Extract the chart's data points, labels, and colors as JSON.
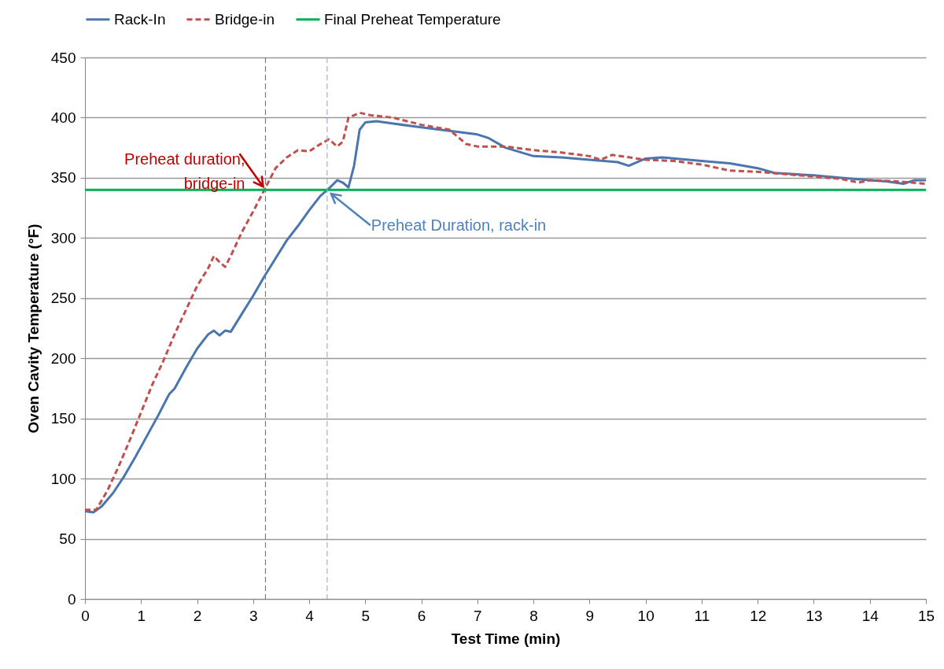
{
  "chart_data": {
    "type": "line",
    "xlabel": "Test Time (min)",
    "ylabel": "Oven Cavity Temperature (°F)",
    "xlim": [
      0,
      15
    ],
    "xticks": [
      0,
      1,
      2,
      3,
      4,
      5,
      6,
      7,
      8,
      9,
      10,
      11,
      12,
      13,
      14,
      15
    ],
    "ylim": [
      0,
      450
    ],
    "yticks": [
      0,
      50,
      100,
      150,
      200,
      250,
      300,
      350,
      400,
      450
    ],
    "grid": "y",
    "legend": "top",
    "marker": "none",
    "series": [
      {
        "name": "Rack-In",
        "color": "#4a76b0",
        "line_style": "solid",
        "x": [
          0,
          0.15,
          0.3,
          0.5,
          0.7,
          0.9,
          1.1,
          1.3,
          1.5,
          1.6,
          1.8,
          2.0,
          2.2,
          2.3,
          2.4,
          2.5,
          2.6,
          2.8,
          3.0,
          3.2,
          3.4,
          3.6,
          3.8,
          4.0,
          4.2,
          4.35,
          4.5,
          4.6,
          4.7,
          4.8,
          4.9,
          5.0,
          5.2,
          5.5,
          6,
          6.5,
          7,
          7.2,
          7.5,
          8,
          8.5,
          9,
          9.5,
          9.7,
          10,
          10.3,
          11,
          11.5,
          12,
          12.3,
          13,
          13.5,
          14,
          14.3,
          14.6,
          14.8,
          15
        ],
        "values": [
          73,
          72,
          77,
          88,
          102,
          118,
          135,
          152,
          170,
          175,
          192,
          208,
          220,
          223,
          219,
          223,
          222,
          237,
          252,
          268,
          283,
          298,
          310,
          323,
          335,
          341,
          348,
          346,
          342,
          360,
          390,
          396,
          397,
          395,
          392,
          389,
          386,
          383,
          375,
          368,
          367,
          365,
          363,
          360,
          366,
          367,
          364,
          362,
          358,
          354,
          352,
          350,
          348,
          347,
          345,
          348,
          348
        ]
      },
      {
        "name": "Bridge-in",
        "color": "#c0504d",
        "line_style": "dashed",
        "x": [
          0,
          0.2,
          0.4,
          0.6,
          0.8,
          1.0,
          1.2,
          1.4,
          1.6,
          1.8,
          2.0,
          2.2,
          2.3,
          2.4,
          2.5,
          2.6,
          2.8,
          3.0,
          3.2,
          3.4,
          3.6,
          3.8,
          4.0,
          4.2,
          4.35,
          4.5,
          4.6,
          4.7,
          4.9,
          5.1,
          5.5,
          6,
          6.5,
          6.8,
          7,
          7.5,
          8,
          8.5,
          9,
          9.2,
          9.4,
          10,
          10.5,
          11,
          11.5,
          12,
          12.5,
          13,
          13.5,
          13.8,
          14,
          14.5,
          15
        ],
        "values": [
          74,
          74,
          90,
          110,
          132,
          155,
          178,
          198,
          220,
          240,
          260,
          275,
          285,
          280,
          276,
          285,
          305,
          322,
          340,
          358,
          367,
          373,
          372,
          378,
          382,
          376,
          380,
          400,
          404,
          402,
          400,
          394,
          390,
          378,
          376,
          376,
          373,
          371,
          368,
          365,
          369,
          365,
          364,
          361,
          356,
          355,
          353,
          351,
          349,
          346,
          348,
          347,
          345
        ]
      },
      {
        "name": "Final Preheat Temperature",
        "color": "#00b050",
        "line_style": "solid",
        "x": [
          0,
          15
        ],
        "values": [
          340,
          340
        ]
      }
    ],
    "ref_lines": [
      {
        "axis": "x",
        "value": 3.22,
        "color": "#8c6e8c",
        "line_style": "dashed"
      },
      {
        "axis": "x",
        "value": 4.32,
        "color": "#a8a8d8",
        "line_style": "dashed"
      }
    ],
    "annotations": [
      {
        "text": "Preheat duration,\nbridge-in",
        "x": 3.22,
        "y": 340
      },
      {
        "text": "Preheat Duration, rack-in",
        "x": 4.32,
        "y": 340
      }
    ]
  }
}
